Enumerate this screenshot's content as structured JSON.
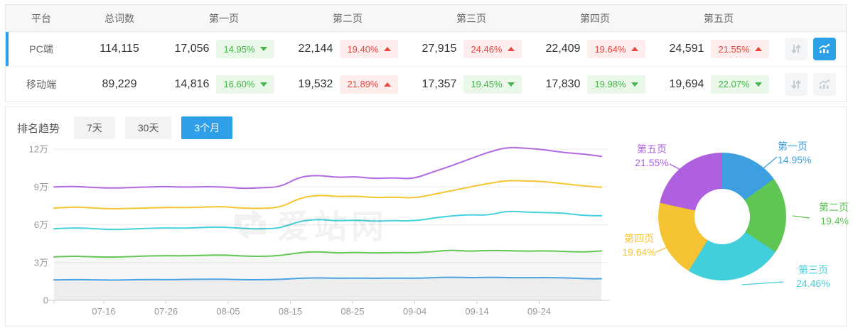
{
  "table": {
    "columns": [
      "平台",
      "总词数",
      "第一页",
      "第二页",
      "第三页",
      "第四页",
      "第五页"
    ],
    "rows": [
      {
        "platform": "PC端",
        "total": "114,115",
        "selected": true,
        "pages": [
          {
            "count": "17,056",
            "change": "14.95%",
            "direction": "down",
            "status": "green"
          },
          {
            "count": "22,144",
            "change": "19.40%",
            "direction": "up",
            "status": "red"
          },
          {
            "count": "27,915",
            "change": "24.46%",
            "direction": "up",
            "status": "red"
          },
          {
            "count": "22,409",
            "change": "19.64%",
            "direction": "up",
            "status": "red"
          },
          {
            "count": "24,591",
            "change": "21.55%",
            "direction": "up",
            "status": "red"
          }
        ]
      },
      {
        "platform": "移动端",
        "total": "89,229",
        "selected": false,
        "pages": [
          {
            "count": "14,816",
            "change": "16.60%",
            "direction": "down",
            "status": "green"
          },
          {
            "count": "19,532",
            "change": "21.89%",
            "direction": "up",
            "status": "red"
          },
          {
            "count": "17,357",
            "change": "19.45%",
            "direction": "down",
            "status": "green"
          },
          {
            "count": "17,830",
            "change": "19.98%",
            "direction": "down",
            "status": "green"
          },
          {
            "count": "19,694",
            "change": "22.07%",
            "direction": "down",
            "status": "green"
          }
        ]
      }
    ]
  },
  "trend": {
    "title": "排名趋势",
    "tabs": [
      {
        "label": "7天",
        "active": false
      },
      {
        "label": "30天",
        "active": false
      },
      {
        "label": "3个月",
        "active": true
      }
    ]
  },
  "watermark_text": "爱站网",
  "colors": {
    "accent_blue": "#2B9FE8",
    "badge_green": "#43b649",
    "badge_red": "#e9463f"
  },
  "chart_data": [
    {
      "type": "line",
      "title": "排名趋势 3个月",
      "x_domain_days": [
        0,
        88
      ],
      "x_ticks": [
        {
          "day": 8,
          "label": "07-16"
        },
        {
          "day": 18,
          "label": "07-26"
        },
        {
          "day": 28,
          "label": "08-05"
        },
        {
          "day": 38,
          "label": "08-15"
        },
        {
          "day": 48,
          "label": "08-25"
        },
        {
          "day": 58,
          "label": "09-04"
        },
        {
          "day": 68,
          "label": "09-14"
        },
        {
          "day": 78,
          "label": "09-24"
        }
      ],
      "y_ticks": [
        {
          "value": 0,
          "label": "0"
        },
        {
          "value": 30000,
          "label": "3万"
        },
        {
          "value": 60000,
          "label": "6万"
        },
        {
          "value": 90000,
          "label": "9万"
        },
        {
          "value": 120000,
          "label": "12万"
        }
      ],
      "ylim": [
        0,
        130000
      ],
      "grid": true,
      "legend": "none",
      "unit_wan": 10000,
      "series": [
        {
          "name": "series-5-total",
          "color": "#B168E3",
          "area": false,
          "values_wan": [
            9.0,
            9.06,
            8.96,
            8.9,
            8.94,
            9.0,
            9.03,
            8.98,
            9.02,
            9.0,
            8.87,
            8.93,
            9.0,
            9.8,
            9.93,
            9.74,
            9.82,
            9.65,
            9.74,
            9.62,
            10.15,
            10.65,
            11.2,
            11.75,
            12.15,
            12.08,
            11.95,
            11.72,
            11.62,
            11.42
          ]
        },
        {
          "name": "series-4-cum",
          "color": "#F6C433",
          "area": false,
          "values_wan": [
            7.32,
            7.42,
            7.34,
            7.25,
            7.29,
            7.33,
            7.38,
            7.35,
            7.41,
            7.44,
            7.31,
            7.29,
            7.37,
            8.12,
            8.36,
            8.22,
            8.28,
            8.14,
            8.2,
            8.1,
            8.38,
            8.68,
            8.98,
            9.28,
            9.52,
            9.47,
            9.42,
            9.25,
            9.1,
            8.97
          ]
        },
        {
          "name": "series-3-cum",
          "color": "#45D1DC",
          "area": false,
          "values_wan": [
            5.68,
            5.76,
            5.7,
            5.61,
            5.65,
            5.71,
            5.75,
            5.72,
            5.79,
            5.82,
            5.7,
            5.67,
            5.73,
            6.28,
            6.44,
            6.3,
            6.38,
            6.27,
            6.34,
            6.29,
            6.5,
            6.7,
            6.8,
            6.74,
            7.1,
            7.0,
            6.97,
            6.93,
            6.73,
            6.71
          ]
        },
        {
          "name": "series-2-cum",
          "color": "#63C655",
          "area": true,
          "values_wan": [
            3.45,
            3.52,
            3.46,
            3.42,
            3.47,
            3.52,
            3.55,
            3.53,
            3.57,
            3.6,
            3.51,
            3.49,
            3.55,
            3.79,
            3.87,
            3.75,
            3.81,
            3.75,
            3.8,
            3.77,
            3.84,
            4.0,
            3.89,
            3.96,
            3.94,
            3.9,
            3.93,
            3.89,
            3.83,
            3.92
          ]
        },
        {
          "name": "series-1-first-page",
          "color": "#4AA4E4",
          "area": true,
          "values_wan": [
            1.62,
            1.65,
            1.63,
            1.6,
            1.62,
            1.65,
            1.64,
            1.66,
            1.67,
            1.68,
            1.64,
            1.63,
            1.66,
            1.75,
            1.79,
            1.75,
            1.77,
            1.74,
            1.77,
            1.75,
            1.79,
            1.83,
            1.79,
            1.82,
            1.81,
            1.79,
            1.81,
            1.79,
            1.72,
            1.71
          ]
        }
      ]
    },
    {
      "type": "donut",
      "slices": [
        {
          "label": "第一页",
          "value": 14.95,
          "display": "14.95%",
          "color": "#3D9FE0"
        },
        {
          "label": "第二页",
          "value": 19.4,
          "display": "19.4%",
          "color": "#5FC553"
        },
        {
          "label": "第三页",
          "value": 24.46,
          "display": "24.46%",
          "color": "#41CFDB"
        },
        {
          "label": "第四页",
          "value": 19.64,
          "display": "19.64%",
          "color": "#F6C433"
        },
        {
          "label": "第五页",
          "value": 21.55,
          "display": "21.55%",
          "color": "#AE60DF"
        }
      ]
    }
  ]
}
